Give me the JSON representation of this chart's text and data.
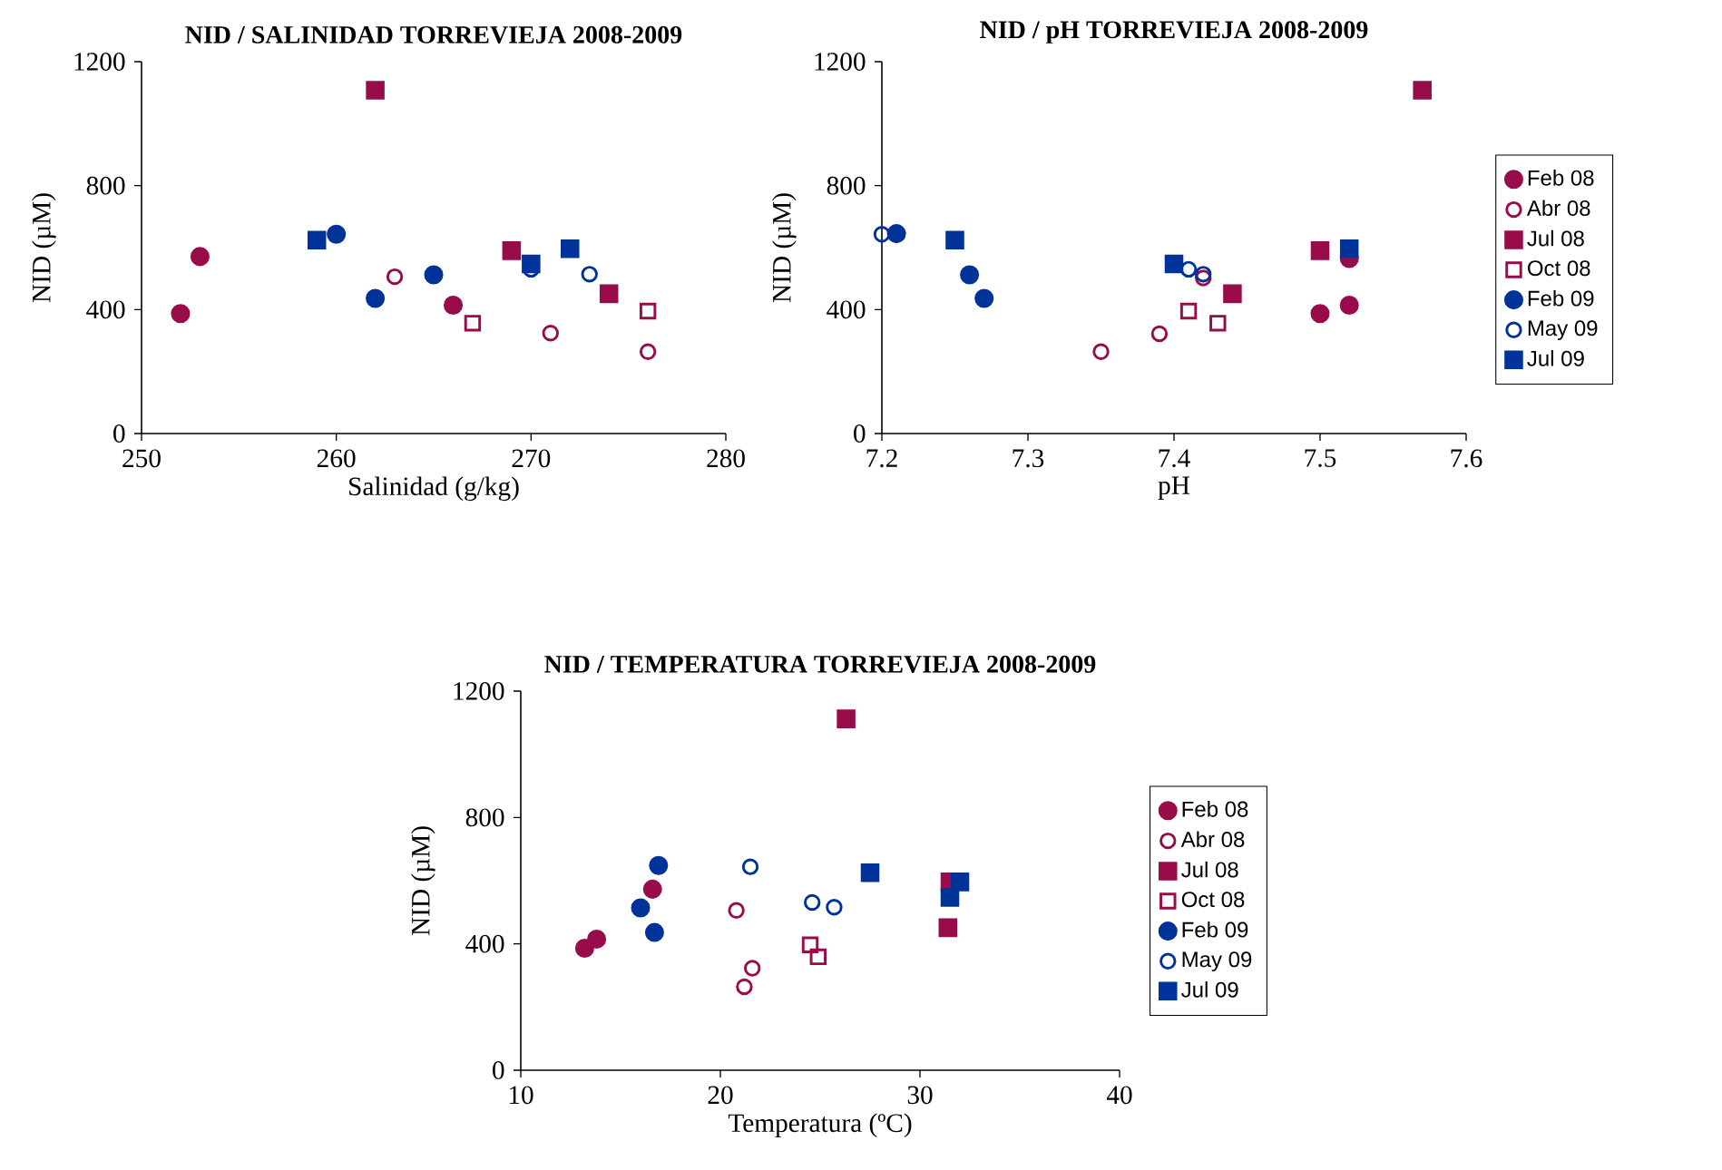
{
  "chart_data": [
    {
      "type": "scatter",
      "title": "NID / SALINIDAD TORREVIEJA 2008-2009",
      "xlabel": "Salinidad (g/kg)",
      "ylabel": "NID (µM)",
      "xlim": [
        250,
        280
      ],
      "ylim": [
        0,
        1200
      ],
      "xticks": [
        250,
        260,
        270,
        280
      ],
      "yticks": [
        0,
        400,
        800,
        1200
      ],
      "grid": false,
      "legend": false,
      "series": [
        {
          "color": "#990c4c",
          "marker": "circle",
          "x": [
            252,
            253,
            266
          ],
          "values": [
            387,
            571,
            414
          ]
        },
        {
          "color": "#990c4c",
          "marker": "circle-open",
          "x": [
            263,
            271,
            276
          ],
          "values": [
            506,
            324,
            264
          ]
        },
        {
          "color": "#990c4c",
          "marker": "square",
          "x": [
            262,
            269,
            274
          ],
          "values": [
            1108,
            590,
            451
          ]
        },
        {
          "color": "#990c4c",
          "marker": "square-open",
          "x": [
            267,
            276
          ],
          "values": [
            356,
            395
          ]
        },
        {
          "color": "#003399",
          "marker": "circle",
          "x": [
            260,
            262,
            265
          ],
          "values": [
            643,
            436,
            512
          ]
        },
        {
          "color": "#003399",
          "marker": "circle-open",
          "x": [
            270,
            273
          ],
          "values": [
            530,
            514
          ]
        },
        {
          "color": "#003399",
          "marker": "square",
          "x": [
            259,
            270,
            272
          ],
          "values": [
            624,
            547,
            596
          ]
        }
      ]
    },
    {
      "type": "scatter",
      "title": "NID / pH TORREVIEJA 2008-2009",
      "xlabel": "pH",
      "ylabel": "NID (µM)",
      "xlim": [
        7.2,
        7.6
      ],
      "ylim": [
        0,
        1200
      ],
      "xticks": [
        7.2,
        7.3,
        7.4,
        7.5,
        7.6
      ],
      "yticks": [
        0,
        400,
        800,
        1200
      ],
      "grid": false,
      "legend": "right",
      "series": [
        {
          "name": "Feb 08",
          "color": "#990c4c",
          "marker": "circle",
          "x": [
            7.5,
            7.52,
            7.52
          ],
          "values": [
            387,
            414,
            565
          ]
        },
        {
          "name": "Abr 08",
          "color": "#990c4c",
          "marker": "circle-open",
          "x": [
            7.35,
            7.39,
            7.42
          ],
          "values": [
            264,
            322,
            502
          ]
        },
        {
          "name": "Jul 08",
          "color": "#990c4c",
          "marker": "square",
          "x": [
            7.57,
            7.5,
            7.44
          ],
          "values": [
            1108,
            590,
            451
          ]
        },
        {
          "name": "Oct 08",
          "color": "#990c4c",
          "marker": "square-open",
          "x": [
            7.41,
            7.43
          ],
          "values": [
            395,
            356
          ]
        },
        {
          "name": "Feb 09",
          "color": "#003399",
          "marker": "circle",
          "x": [
            7.21,
            7.26,
            7.27
          ],
          "values": [
            645,
            512,
            436
          ]
        },
        {
          "name": "May 09",
          "color": "#003399",
          "marker": "circle-open",
          "x": [
            7.2,
            7.41,
            7.42
          ],
          "values": [
            643,
            530,
            514
          ]
        },
        {
          "name": "Jul 09",
          "color": "#003399",
          "marker": "square",
          "x": [
            7.25,
            7.4,
            7.52
          ],
          "values": [
            624,
            547,
            596
          ]
        }
      ]
    },
    {
      "type": "scatter",
      "title": "NID / TEMPERATURA TORREVIEJA 2008-2009",
      "xlabel": "Temperatura (ºC)",
      "ylabel": "NID (µM)",
      "xlim": [
        10,
        40
      ],
      "ylim": [
        0,
        1200
      ],
      "xticks": [
        10,
        20,
        30,
        40
      ],
      "yticks": [
        0,
        400,
        800,
        1200
      ],
      "grid": false,
      "legend": "right",
      "series": [
        {
          "name": "Feb 08",
          "color": "#990c4c",
          "marker": "circle",
          "x": [
            13.2,
            13.8,
            16.6
          ],
          "values": [
            386,
            415,
            573
          ]
        },
        {
          "name": "Abr 08",
          "color": "#990c4c",
          "marker": "circle-open",
          "x": [
            20.8,
            21.2,
            21.6
          ],
          "values": [
            506,
            264,
            323
          ]
        },
        {
          "name": "Jul 08",
          "color": "#990c4c",
          "marker": "square",
          "x": [
            26.3,
            31.4,
            31.5
          ],
          "values": [
            1112,
            451,
            596
          ]
        },
        {
          "name": "Oct 08",
          "color": "#990c4c",
          "marker": "square-open",
          "x": [
            24.5,
            24.9
          ],
          "values": [
            397,
            359
          ]
        },
        {
          "name": "Feb 09",
          "color": "#003399",
          "marker": "circle",
          "x": [
            16.0,
            16.7,
            16.9
          ],
          "values": [
            514,
            436,
            648
          ]
        },
        {
          "name": "May 09",
          "color": "#003399",
          "marker": "circle-open",
          "x": [
            21.5,
            24.6,
            25.7
          ],
          "values": [
            644,
            531,
            516
          ]
        },
        {
          "name": "Jul 09",
          "color": "#003399",
          "marker": "square",
          "x": [
            27.5,
            31.5,
            32.0
          ],
          "values": [
            625,
            547,
            596
          ]
        }
      ]
    }
  ]
}
